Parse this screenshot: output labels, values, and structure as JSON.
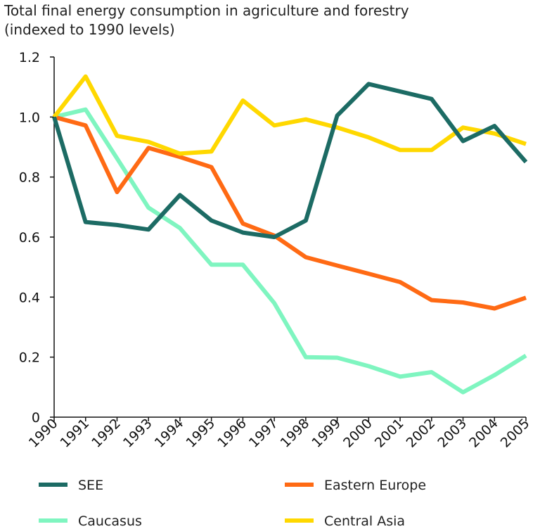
{
  "chart_data": {
    "type": "line",
    "title_line1": "Total final energy consumption in agriculture and forestry",
    "title_line2": "(indexed to 1990 levels)",
    "xlabel": "",
    "ylabel": "",
    "x": [
      "1990",
      "1991",
      "1992",
      "1993",
      "1994",
      "1995",
      "1996",
      "1997",
      "1998",
      "1999",
      "2000",
      "2001",
      "2002",
      "2003",
      "2004",
      "2005"
    ],
    "ylim": [
      0,
      1.2
    ],
    "yticks": [
      "0",
      "0.2",
      "0.4",
      "0.6",
      "0.8",
      "1.0",
      "1.2"
    ],
    "grid": false,
    "legend_position": "bottom",
    "series": [
      {
        "name": "SEE",
        "color": "#1c6b64",
        "values": [
          1.0,
          0.65,
          0.64,
          0.625,
          0.74,
          0.655,
          0.615,
          0.6,
          0.655,
          1.005,
          1.11,
          1.085,
          1.06,
          0.92,
          0.97,
          0.85
        ]
      },
      {
        "name": "Eastern Europe",
        "color": "#ff6a14",
        "values": [
          1.0,
          0.972,
          0.75,
          0.897,
          0.867,
          0.833,
          0.645,
          0.605,
          0.533,
          0.505,
          0.478,
          0.45,
          0.39,
          0.382,
          0.362,
          0.398
        ]
      },
      {
        "name": "Caucasus",
        "color": "#7ff5c0",
        "values": [
          1.0,
          1.025,
          0.862,
          0.698,
          0.63,
          0.508,
          0.508,
          0.38,
          0.2,
          0.198,
          0.17,
          0.135,
          0.15,
          0.083,
          0.14,
          0.205
        ]
      },
      {
        "name": "Central Asia",
        "color": "#ffd800",
        "values": [
          1.0,
          1.135,
          0.937,
          0.917,
          0.878,
          0.885,
          1.055,
          0.972,
          0.992,
          0.965,
          0.932,
          0.89,
          0.89,
          0.965,
          0.945,
          0.91
        ]
      }
    ]
  }
}
